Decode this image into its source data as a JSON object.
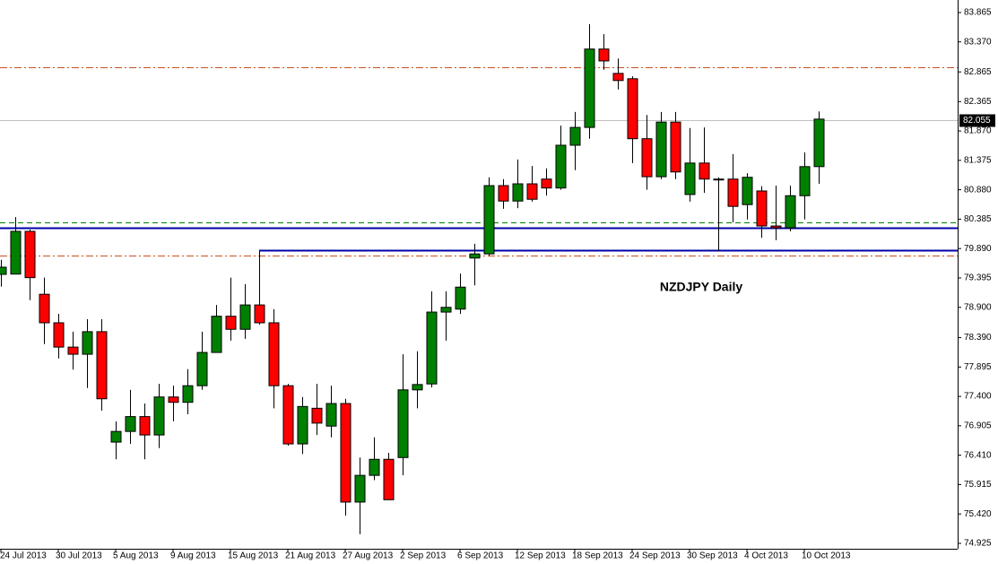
{
  "chart_data": {
    "type": "candlestick",
    "annotation": "NZDJPY Daily",
    "annotation_color": "#ff0000",
    "up_color": "#008000",
    "down_color": "#ff0000",
    "categories": [
      "24 Jul 2013",
      null,
      null,
      null,
      "30 Jul 2013",
      null,
      null,
      null,
      "5 Aug 2013",
      null,
      null,
      null,
      "9 Aug 2013",
      null,
      null,
      null,
      "15 Aug 2013",
      null,
      null,
      null,
      "21 Aug 2013",
      null,
      null,
      null,
      "27 Aug 2013",
      null,
      null,
      null,
      "2 Sep 2013",
      null,
      null,
      null,
      "6 Sep 2013",
      null,
      null,
      null,
      "12 Sep 2013",
      null,
      null,
      null,
      "18 Sep 2013",
      null,
      null,
      null,
      "24 Sep 2013",
      null,
      null,
      null,
      "30 Sep 2013",
      null,
      null,
      null,
      "4 Oct 2013",
      null,
      null,
      null,
      "10 Oct 2013",
      null
    ],
    "open": [
      79.455,
      79.46,
      80.18,
      79.12,
      78.64,
      78.23,
      78.11,
      78.49,
      76.63,
      76.81,
      77.06,
      76.75,
      77.39,
      77.3,
      77.58,
      78.14,
      78.75,
      78.53,
      78.94,
      78.64,
      77.58,
      76.6,
      77.2,
      76.9,
      77.28,
      75.62,
      76.07,
      76.34,
      76.37,
      77.51,
      77.61,
      78.82,
      78.87,
      79.73,
      79.8,
      80.95,
      80.69,
      80.98,
      81.06,
      80.91,
      81.63,
      81.93,
      83.25,
      82.84,
      82.75,
      81.74,
      81.1,
      82.02,
      80.8,
      81.33,
      81.06,
      81.06,
      80.63,
      80.86,
      80.27,
      80.24,
      80.78,
      81.27
    ],
    "high": [
      79.7,
      80.42,
      80.21,
      79.4,
      78.79,
      78.49,
      78.7,
      78.7,
      76.98,
      77.51,
      77.28,
      77.61,
      77.58,
      77.86,
      78.49,
      78.94,
      79.4,
      79.29,
      79.85,
      78.87,
      77.61,
      77.39,
      77.61,
      77.58,
      77.36,
      76.37,
      76.71,
      76.45,
      78.11,
      78.16,
      79.17,
      79.17,
      79.47,
      79.97,
      81.09,
      81.06,
      81.39,
      81.28,
      81.24,
      81.96,
      82.19,
      83.67,
      83.5,
      83.09,
      82.79,
      82.14,
      82.19,
      82.19,
      81.92,
      81.93,
      81.09,
      81.48,
      81.16,
      80.94,
      80.95,
      80.95,
      81.51,
      82.2
    ],
    "low": [
      79.25,
      79.55,
      79.02,
      78.28,
      78.04,
      77.85,
      77.54,
      77.16,
      76.34,
      76.6,
      76.34,
      76.53,
      76.98,
      77.1,
      77.51,
      78.14,
      78.34,
      78.37,
      78.61,
      77.2,
      76.57,
      76.43,
      76.75,
      76.71,
      75.39,
      75.08,
      75.99,
      75.66,
      76.07,
      77.2,
      77.55,
      78.34,
      78.79,
      79.27,
      79.77,
      80.56,
      80.57,
      80.68,
      80.78,
      80.88,
      81.21,
      81.74,
      82.9,
      82.57,
      81.33,
      80.88,
      81.06,
      81.06,
      80.68,
      80.83,
      79.85,
      80.33,
      80.38,
      80.07,
      80.03,
      80.18,
      80.38,
      80.98
    ],
    "close": [
      79.576,
      80.18,
      79.4,
      78.64,
      78.23,
      78.11,
      78.49,
      77.36,
      76.81,
      77.06,
      76.75,
      77.39,
      77.3,
      77.58,
      78.14,
      78.75,
      78.53,
      78.94,
      78.64,
      77.58,
      76.6,
      77.23,
      76.95,
      77.28,
      75.62,
      76.07,
      76.34,
      75.66,
      77.51,
      77.6,
      78.82,
      78.9,
      79.24,
      79.8,
      80.95,
      80.69,
      80.98,
      80.72,
      80.91,
      81.63,
      81.93,
      83.25,
      83.05,
      82.72,
      81.74,
      81.1,
      82.02,
      81.18,
      81.33,
      81.06,
      81.05,
      80.6,
      81.09,
      80.27,
      80.24,
      80.78,
      81.27,
      82.07
    ],
    "ylim": [
      74.834,
      84.076
    ],
    "yticks": [
      83.865,
      {
        "value": 83.37,
        "label": "83.370"
      },
      82.865,
      82.365,
      {
        "value": 81.87,
        "label": "81.870"
      },
      81.375,
      {
        "value": 80.88,
        "label": "80.880"
      },
      80.385,
      {
        "value": 79.89,
        "label": "79.890"
      },
      79.395,
      {
        "value": 78.9,
        "label": "78.900"
      },
      {
        "value": 78.39,
        "label": "78.390"
      },
      77.895,
      {
        "value": 77.4,
        "label": "77.400"
      },
      76.905,
      {
        "value": 76.41,
        "label": "76.410"
      },
      75.915,
      {
        "value": 75.42,
        "label": "75.420"
      },
      74.925
    ],
    "current_price": 82.055,
    "levels": [
      {
        "value": 82.94,
        "color": "#c8501e",
        "style": "dashdot",
        "start": 0
      },
      {
        "value": 80.33,
        "color": "#008000",
        "style": "dashed",
        "start": 0
      },
      {
        "value": 80.24,
        "color": "#0000aa",
        "style": "solid",
        "start": 0
      },
      {
        "value": 79.86,
        "color": "#0000aa",
        "style": "solid",
        "start": 18
      },
      {
        "value": 79.77,
        "color": "#c8501e",
        "style": "dashdot",
        "start": 0
      }
    ]
  }
}
